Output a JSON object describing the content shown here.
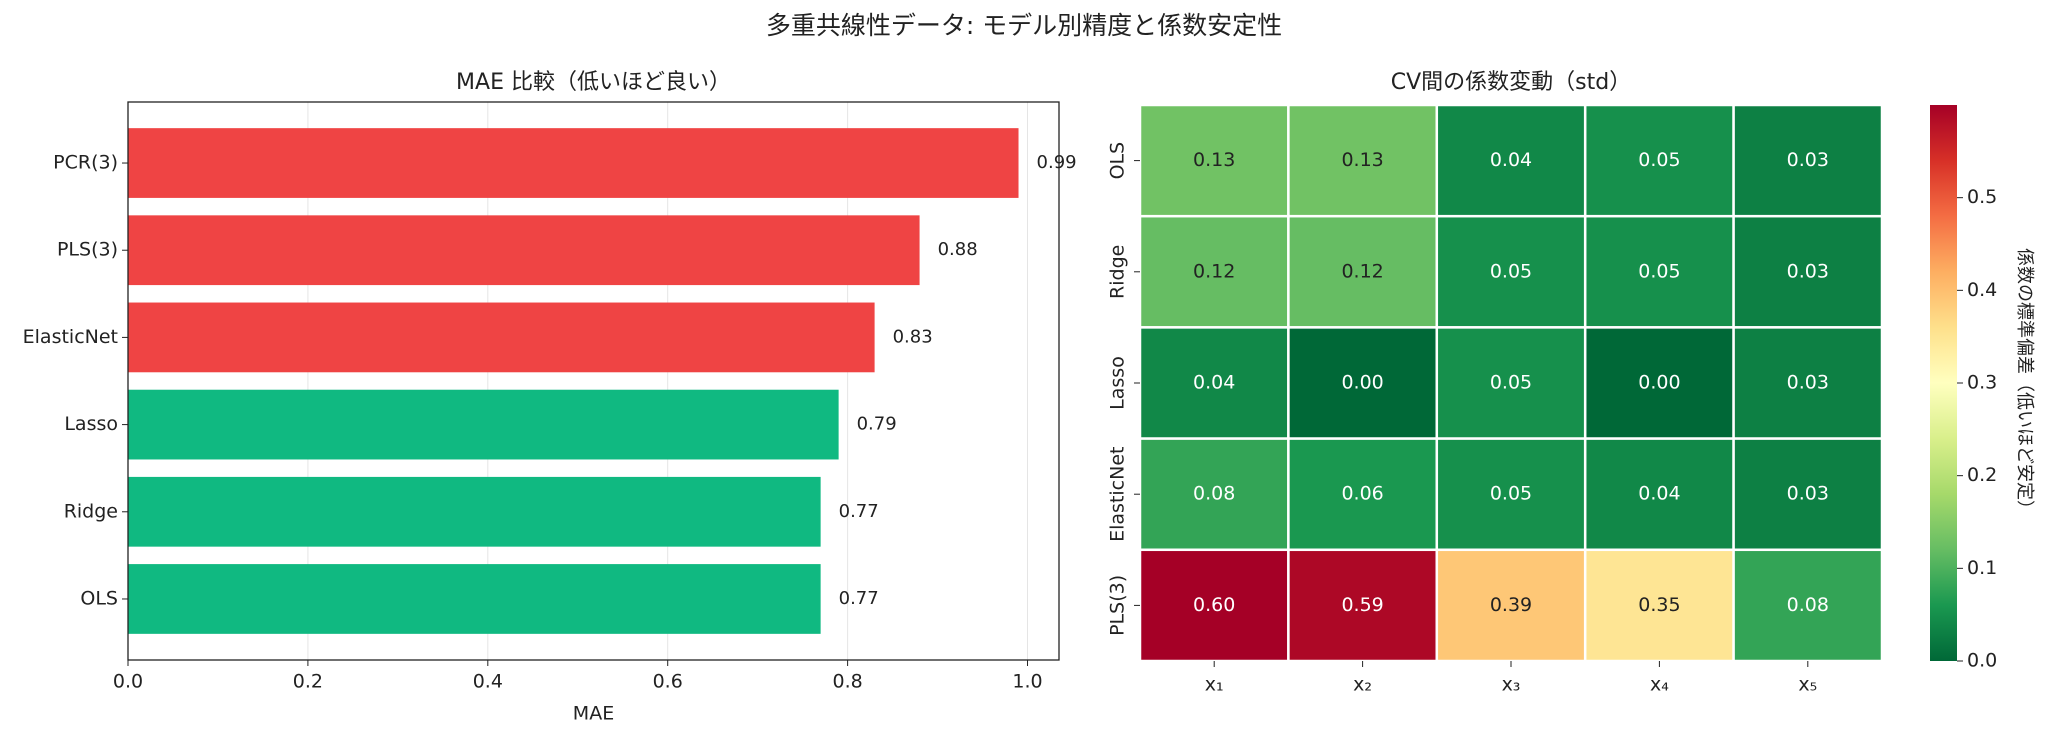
{
  "title": "多重共線性データ: モデル別精度と係数安定性",
  "chart_data": [
    {
      "type": "barh",
      "title": "MAE 比較（低いほど良い）",
      "xlabel": "MAE",
      "categories": [
        "PCR(3)",
        "PLS(3)",
        "ElasticNet",
        "Lasso",
        "Ridge",
        "OLS"
      ],
      "values": [
        0.99,
        0.88,
        0.83,
        0.79,
        0.77,
        0.77
      ],
      "colors": [
        "#ef4444",
        "#ef4444",
        "#ef4444",
        "#10b981",
        "#10b981",
        "#10b981"
      ],
      "xlim": [
        0,
        1.035
      ],
      "xticks": [
        {
          "value": 0,
          "label": "0.0"
        },
        0.2,
        0.4,
        0.6,
        0.8,
        {
          "value": 1,
          "label": "1.0"
        }
      ],
      "grid": true
    },
    {
      "type": "heatmap",
      "title": "CV間の係数変動（std）",
      "rows": [
        "OLS",
        "Ridge",
        "Lasso",
        "ElasticNet",
        "PLS(3)"
      ],
      "columns": [
        "x₁",
        "x₂",
        "x₃",
        "x₄",
        "x₅"
      ],
      "values": [
        [
          0.13,
          0.13,
          0.04,
          0.05,
          0.03
        ],
        [
          0.12,
          0.12,
          0.05,
          0.05,
          0.03
        ],
        [
          0.04,
          0,
          0.05,
          0,
          0.03
        ],
        [
          0.08,
          0.06,
          0.05,
          0.04,
          0.03
        ],
        [
          0.6,
          0.59,
          0.39,
          0.35,
          0.08
        ]
      ],
      "value_labels": [
        [
          "0.13",
          "0.13",
          "0.04",
          "0.05",
          "0.03"
        ],
        [
          "0.12",
          "0.12",
          "0.05",
          "0.05",
          "0.03"
        ],
        [
          "0.04",
          "0.00",
          "0.05",
          "0.00",
          "0.03"
        ],
        [
          "0.08",
          "0.06",
          "0.05",
          "0.04",
          "0.03"
        ],
        [
          "0.60",
          "0.59",
          "0.39",
          "0.35",
          "0.08"
        ]
      ],
      "colormap": "RdYlGn_r",
      "zlim": [
        0,
        0.6
      ],
      "colorbar_label": "係数の標準偏差（低いほど安定）",
      "colorbar_ticks": [
        {
          "value": 0,
          "label": "0.0"
        },
        0.1,
        0.2,
        0.3,
        0.4,
        0.5
      ]
    }
  ]
}
